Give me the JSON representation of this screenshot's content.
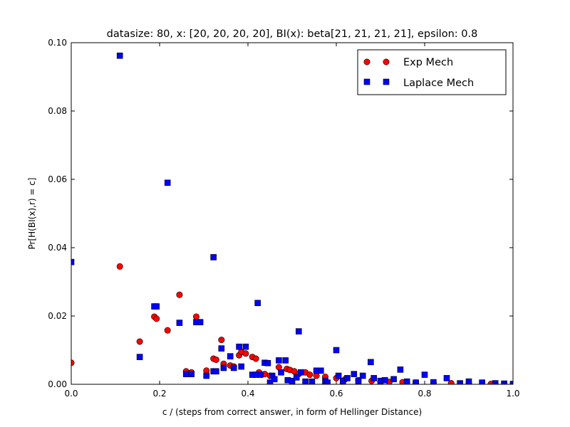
{
  "chart_data": {
    "type": "scatter",
    "title": "datasize: 80, x: [20, 20, 20, 20], BI(x): beta[21, 21, 21, 21], epsilon: 0.8",
    "xlabel": "c / (steps from correct answer, in form of Hellinger Distance)",
    "ylabel": "Pr[H(BI(x),r) = c]",
    "xlim": [
      0.0,
      1.0
    ],
    "ylim": [
      0.0,
      0.1
    ],
    "xticks": [
      "0.0",
      "0.2",
      "0.4",
      "0.6",
      "0.8",
      "1.0"
    ],
    "yticks": [
      "0.00",
      "0.02",
      "0.04",
      "0.06",
      "0.08",
      "0.10"
    ],
    "grid": false,
    "legend_position": "top-right",
    "series": [
      {
        "name": "Exp Mech",
        "marker": "circle",
        "color": "#ff0000",
        "points": [
          [
            0.0,
            0.0063
          ],
          [
            0.11,
            0.0345
          ],
          [
            0.155,
            0.0125
          ],
          [
            0.188,
            0.0198
          ],
          [
            0.193,
            0.0192
          ],
          [
            0.218,
            0.0158
          ],
          [
            0.245,
            0.0262
          ],
          [
            0.26,
            0.0038
          ],
          [
            0.272,
            0.0035
          ],
          [
            0.283,
            0.0198
          ],
          [
            0.306,
            0.004
          ],
          [
            0.322,
            0.0075
          ],
          [
            0.328,
            0.0072
          ],
          [
            0.34,
            0.013
          ],
          [
            0.345,
            0.006
          ],
          [
            0.36,
            0.0055
          ],
          [
            0.368,
            0.0052
          ],
          [
            0.38,
            0.0085
          ],
          [
            0.385,
            0.0095
          ],
          [
            0.395,
            0.009
          ],
          [
            0.41,
            0.008
          ],
          [
            0.418,
            0.0075
          ],
          [
            0.425,
            0.0035
          ],
          [
            0.438,
            0.003
          ],
          [
            0.45,
            0.0025
          ],
          [
            0.47,
            0.005
          ],
          [
            0.488,
            0.0045
          ],
          [
            0.495,
            0.0042
          ],
          [
            0.505,
            0.0038
          ],
          [
            0.515,
            0.003
          ],
          [
            0.53,
            0.0035
          ],
          [
            0.54,
            0.0028
          ],
          [
            0.555,
            0.0025
          ],
          [
            0.575,
            0.0022
          ],
          [
            0.6,
            0.0018
          ],
          [
            0.62,
            0.0015
          ],
          [
            0.65,
            0.0012
          ],
          [
            0.68,
            0.001
          ],
          [
            0.7,
            0.0008
          ],
          [
            0.72,
            0.0007
          ],
          [
            0.75,
            0.0006
          ],
          [
            0.78,
            0.0005
          ],
          [
            0.82,
            0.0004
          ],
          [
            0.86,
            0.0003
          ],
          [
            0.9,
            0.0002
          ],
          [
            0.95,
            0.0001
          ],
          [
            1.0,
            0.0
          ]
        ]
      },
      {
        "name": "Laplace Mech",
        "marker": "square",
        "color": "#0000ff",
        "points": [
          [
            0.0,
            0.0358
          ],
          [
            0.11,
            0.0962
          ],
          [
            0.155,
            0.008
          ],
          [
            0.188,
            0.0228
          ],
          [
            0.193,
            0.0228
          ],
          [
            0.218,
            0.059
          ],
          [
            0.245,
            0.018
          ],
          [
            0.26,
            0.003
          ],
          [
            0.272,
            0.003
          ],
          [
            0.283,
            0.0182
          ],
          [
            0.292,
            0.0182
          ],
          [
            0.306,
            0.0025
          ],
          [
            0.322,
            0.0038
          ],
          [
            0.328,
            0.0038
          ],
          [
            0.322,
            0.0372
          ],
          [
            0.34,
            0.0105
          ],
          [
            0.345,
            0.0048
          ],
          [
            0.36,
            0.0082
          ],
          [
            0.368,
            0.0048
          ],
          [
            0.38,
            0.011
          ],
          [
            0.385,
            0.0052
          ],
          [
            0.395,
            0.011
          ],
          [
            0.41,
            0.0028
          ],
          [
            0.418,
            0.0028
          ],
          [
            0.422,
            0.0238
          ],
          [
            0.428,
            0.0028
          ],
          [
            0.438,
            0.0063
          ],
          [
            0.445,
            0.0062
          ],
          [
            0.45,
            0.0005
          ],
          [
            0.455,
            0.0025
          ],
          [
            0.46,
            0.0015
          ],
          [
            0.47,
            0.007
          ],
          [
            0.475,
            0.0035
          ],
          [
            0.485,
            0.007
          ],
          [
            0.49,
            0.0012
          ],
          [
            0.5,
            0.001
          ],
          [
            0.51,
            0.002
          ],
          [
            0.515,
            0.0155
          ],
          [
            0.52,
            0.0035
          ],
          [
            0.53,
            0.0008
          ],
          [
            0.545,
            0.0008
          ],
          [
            0.555,
            0.004
          ],
          [
            0.565,
            0.004
          ],
          [
            0.575,
            0.001
          ],
          [
            0.58,
            0.0005
          ],
          [
            0.6,
            0.01
          ],
          [
            0.605,
            0.0025
          ],
          [
            0.615,
            0.001
          ],
          [
            0.625,
            0.0018
          ],
          [
            0.64,
            0.003
          ],
          [
            0.65,
            0.001
          ],
          [
            0.66,
            0.0025
          ],
          [
            0.678,
            0.0065
          ],
          [
            0.685,
            0.0018
          ],
          [
            0.7,
            0.001
          ],
          [
            0.71,
            0.0012
          ],
          [
            0.73,
            0.0015
          ],
          [
            0.745,
            0.0043
          ],
          [
            0.76,
            0.0008
          ],
          [
            0.78,
            0.0005
          ],
          [
            0.8,
            0.0028
          ],
          [
            0.82,
            0.0006
          ],
          [
            0.85,
            0.0018
          ],
          [
            0.88,
            0.0003
          ],
          [
            0.9,
            0.0008
          ],
          [
            0.93,
            0.0005
          ],
          [
            0.96,
            0.0003
          ],
          [
            0.98,
            0.0002
          ],
          [
            1.0,
            0.0001
          ]
        ]
      }
    ]
  }
}
